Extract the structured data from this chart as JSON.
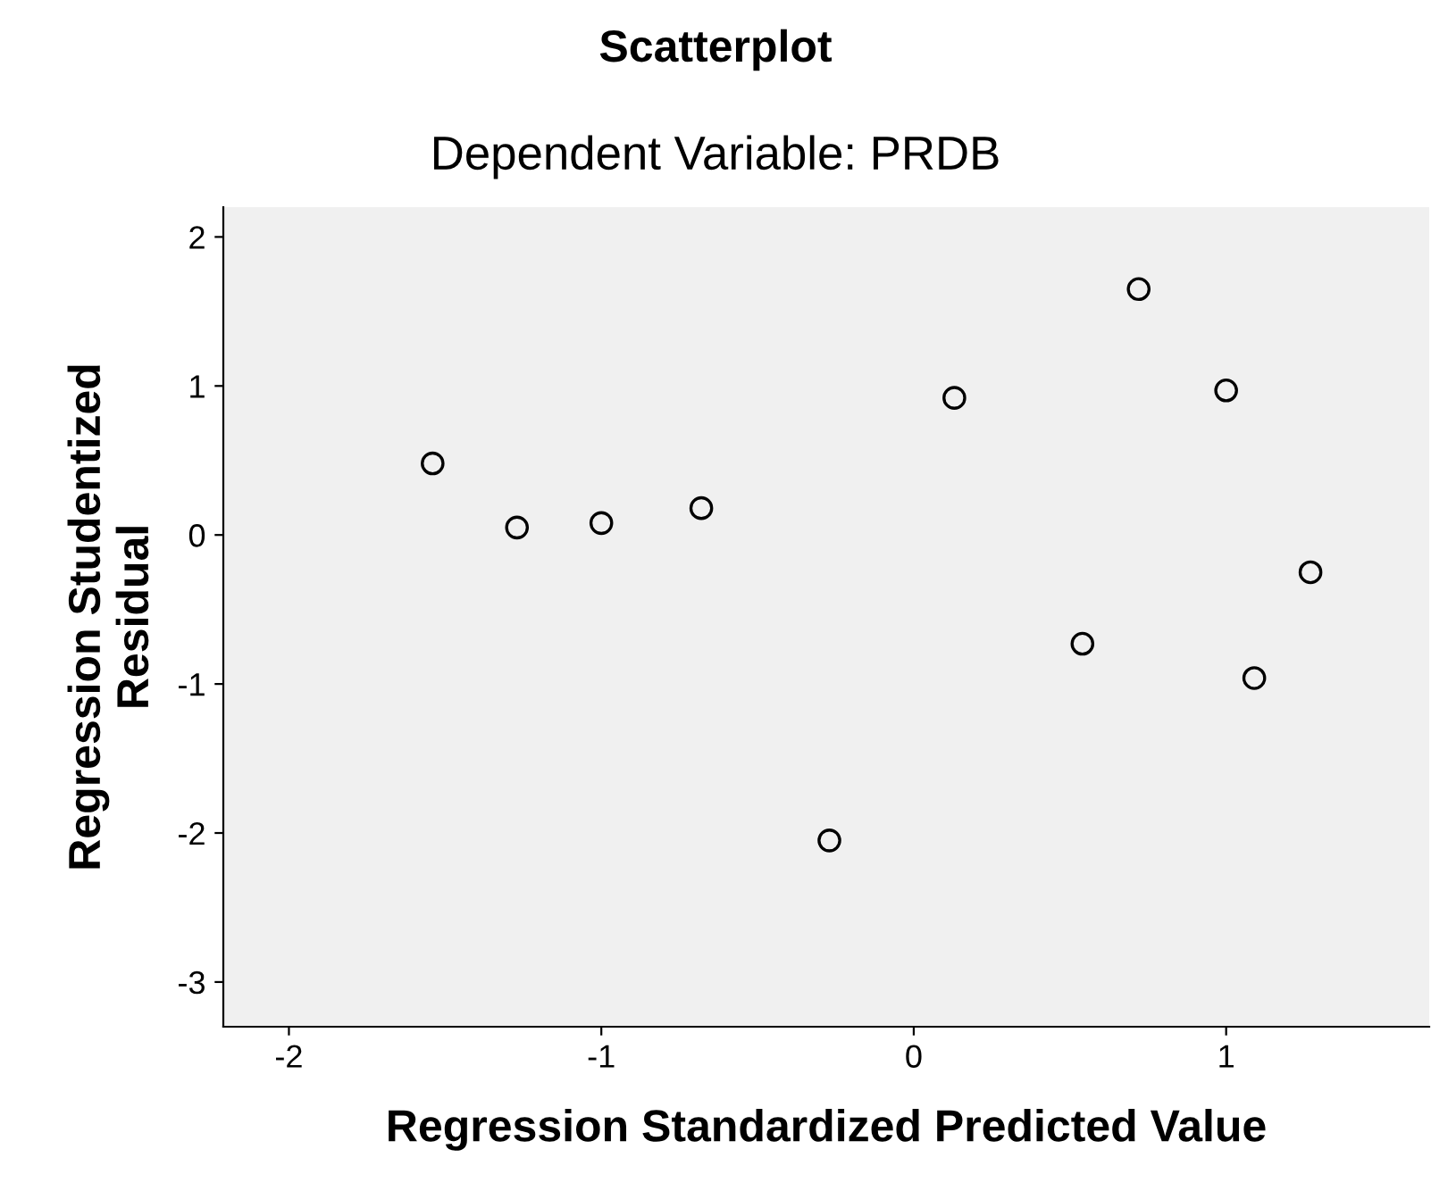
{
  "chart_data": {
    "type": "scatter",
    "title": "Scatterplot",
    "subtitle": "Dependent Variable: PRDB",
    "xlabel": "Regression Standardized Predicted Value",
    "ylabel": "Regression Studentized\nResidual",
    "x": [
      -1.54,
      -1.27,
      -1.0,
      -0.68,
      -0.27,
      0.13,
      0.54,
      0.72,
      1.0,
      1.09,
      1.27
    ],
    "series": [
      {
        "color": "#000000",
        "values": [
          0.48,
          0.05,
          0.08,
          0.18,
          -2.05,
          0.92,
          -0.73,
          1.65,
          0.97,
          -0.96,
          -0.25
        ]
      }
    ],
    "marker": "circle",
    "xlim": [
      -2.21,
      1.65
    ],
    "ylim": [
      -3.3,
      2.2
    ],
    "xticks": [
      -2,
      -1,
      0,
      1
    ],
    "yticks": [
      -3,
      -2,
      -1,
      0,
      1,
      2
    ],
    "grid": false,
    "legend": false
  }
}
